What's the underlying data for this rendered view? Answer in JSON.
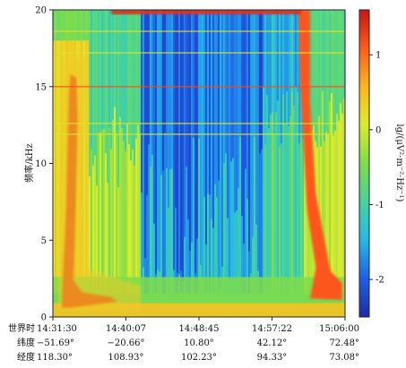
{
  "chart_data": {
    "type": "heatmap",
    "title": "",
    "ylabel": "频率/kHz",
    "ylim": [
      0,
      20
    ],
    "yticks": [
      0,
      5,
      10,
      15,
      20
    ],
    "colorbar": {
      "label": "lg/(μV²·m⁻²·Hz⁻¹)",
      "range": [
        -2.5,
        1.6
      ],
      "ticks": [
        -2,
        -1,
        0,
        1
      ],
      "colors": [
        "#1f2aa8",
        "#1f5ee8",
        "#25b9e6",
        "#45d39c",
        "#7fdc4a",
        "#d9ec2f",
        "#ffb51f",
        "#ff5a1a",
        "#c81414"
      ]
    },
    "x_rows": [
      {
        "label": "世界时",
        "values": [
          "14:31:30",
          "14:40:07",
          "14:48:45",
          "14:57:22",
          "15:06:00"
        ]
      },
      {
        "label": "纬度",
        "values": [
          "−51.69°",
          "−20.66°",
          "10.80°",
          "42.12°",
          "72.48°"
        ]
      },
      {
        "label": "经度",
        "values": [
          "118.30°",
          "108.93°",
          "102.23°",
          "94.33°",
          "73.08°"
        ]
      }
    ]
  }
}
